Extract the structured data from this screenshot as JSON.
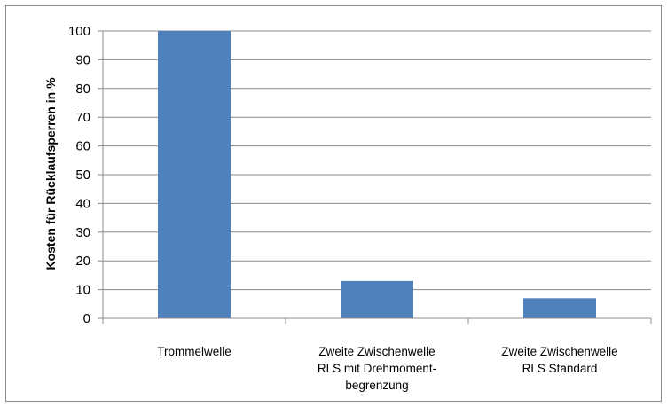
{
  "chart_data": {
    "type": "bar",
    "title": "",
    "xlabel": "",
    "ylabel": "Kosten für Rücklaufsperren in %",
    "ylim": [
      0,
      100
    ],
    "yticks": [
      0,
      10,
      20,
      30,
      40,
      50,
      60,
      70,
      80,
      90,
      100
    ],
    "grid": true,
    "legend": "none",
    "bar_color": "#4f81bd",
    "categories": [
      [
        "Trommelwelle"
      ],
      [
        "Zweite Zwischenwelle",
        "RLS mit Drehmoment-",
        "begrenzung"
      ],
      [
        "Zweite Zwischenwelle",
        "RLS Standard"
      ]
    ],
    "values": [
      100,
      13,
      7
    ]
  }
}
